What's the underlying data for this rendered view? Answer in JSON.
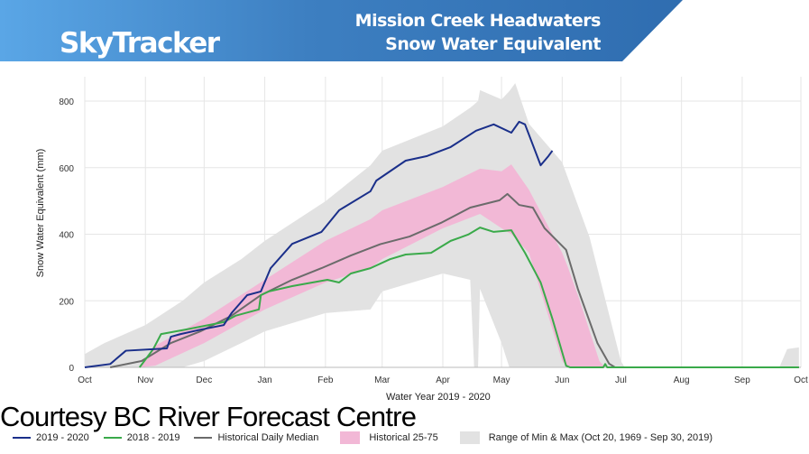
{
  "header": {
    "brand": "SkyTracker",
    "title_line1": "Mission Creek Headwaters",
    "title_line2": "Snow Water Equivalent",
    "banner_color": "#3d7fc1"
  },
  "credit": "Courtesy BC River Forecast Centre",
  "chart_data": {
    "type": "line",
    "xlabel": "Water Year 2019 - 2020",
    "ylabel": "Snow Water Equivalent (mm)",
    "xlim": [
      "2019-10-01",
      "2020-10-01"
    ],
    "ylim": [
      0,
      850
    ],
    "x_ticks": [
      {
        "date": "2019-10-01",
        "label": "Oct"
      },
      {
        "date": "2019-11-01",
        "label": "Nov"
      },
      {
        "date": "2019-12-01",
        "label": "Dec"
      },
      {
        "date": "2020-01-01",
        "label": "Jan"
      },
      {
        "date": "2020-02-01",
        "label": "Feb"
      },
      {
        "date": "2020-03-01",
        "label": "Mar"
      },
      {
        "date": "2020-04-01",
        "label": "Apr"
      },
      {
        "date": "2020-05-01",
        "label": "May"
      },
      {
        "date": "2020-06-01",
        "label": "Jun"
      },
      {
        "date": "2020-07-01",
        "label": "Jul"
      },
      {
        "date": "2020-08-01",
        "label": "Aug"
      },
      {
        "date": "2020-09-01",
        "label": "Sep"
      },
      {
        "date": "2020-10-01",
        "label": "Oct"
      }
    ],
    "y_ticks": [
      0,
      200,
      400,
      600,
      800
    ],
    "grid": true,
    "legend_position": "bottom",
    "bands": [
      {
        "name": "Range of Min & Max (Oct 20, 1969 - Sep 30, 2019)",
        "color": "#e2e2e2",
        "points": [
          [
            "2019-10-01",
            0,
            40
          ],
          [
            "2019-10-11",
            0,
            73
          ],
          [
            "2019-11-01",
            0,
            127
          ],
          [
            "2019-11-20",
            0,
            200
          ],
          [
            "2019-12-01",
            19,
            255
          ],
          [
            "2019-12-20",
            73,
            325
          ],
          [
            "2020-01-01",
            108,
            380
          ],
          [
            "2020-02-01",
            163,
            499
          ],
          [
            "2020-02-24",
            174,
            607
          ],
          [
            "2020-03-01",
            228,
            651
          ],
          [
            "2020-04-01",
            282,
            724
          ],
          [
            "2020-04-15",
            263,
            780
          ],
          [
            "2020-04-17",
            0,
            790
          ],
          [
            "2020-04-19",
            0,
            800
          ],
          [
            "2020-04-20",
            236,
            833
          ],
          [
            "2020-05-01",
            73,
            805
          ],
          [
            "2020-05-05",
            0,
            830
          ],
          [
            "2020-05-08",
            0,
            854
          ],
          [
            "2020-05-15",
            0,
            732
          ],
          [
            "2020-06-01",
            0,
            616
          ],
          [
            "2020-06-15",
            0,
            391
          ],
          [
            "2020-07-01",
            0,
            19
          ],
          [
            "2020-07-03",
            0,
            0
          ],
          [
            "2020-09-20",
            0,
            0
          ],
          [
            "2020-09-24",
            0,
            55
          ],
          [
            "2020-09-30",
            0,
            60
          ]
        ]
      },
      {
        "name": "Historical 25-75",
        "color": "#f2b8d6",
        "points": [
          [
            "2019-10-29",
            0,
            0
          ],
          [
            "2019-11-06",
            5,
            65
          ],
          [
            "2019-12-01",
            73,
            146
          ],
          [
            "2020-01-01",
            174,
            263
          ],
          [
            "2020-02-01",
            255,
            380
          ],
          [
            "2020-02-24",
            298,
            445
          ],
          [
            "2020-03-01",
            325,
            472
          ],
          [
            "2020-04-01",
            418,
            542
          ],
          [
            "2020-04-20",
            461,
            597
          ],
          [
            "2020-05-01",
            418,
            589
          ],
          [
            "2020-05-06",
            400,
            610
          ],
          [
            "2020-05-15",
            344,
            534
          ],
          [
            "2020-06-01",
            19,
            344
          ],
          [
            "2020-06-04",
            0,
            300
          ],
          [
            "2020-06-10",
            0,
            200
          ],
          [
            "2020-06-20",
            0,
            19
          ],
          [
            "2020-06-23",
            0,
            0
          ]
        ]
      }
    ],
    "series": [
      {
        "name": "Range of Min & Max (Oct 20, 1969 - Sep 30, 2019)",
        "legend_only": true
      },
      {
        "name": "Historical Daily Median",
        "color": "#6b6b6b",
        "points": [
          [
            "2019-10-14",
            0
          ],
          [
            "2019-10-30",
            19
          ],
          [
            "2019-11-14",
            73
          ],
          [
            "2019-11-29",
            108
          ],
          [
            "2019-12-15",
            155
          ],
          [
            "2019-12-30",
            217
          ],
          [
            "2020-01-15",
            263
          ],
          [
            "2020-01-30",
            298
          ],
          [
            "2020-02-14",
            336
          ],
          [
            "2020-02-29",
            370
          ],
          [
            "2020-03-15",
            393
          ],
          [
            "2020-03-31",
            434
          ],
          [
            "2020-04-15",
            480
          ],
          [
            "2020-04-30",
            502
          ],
          [
            "2020-05-04",
            521
          ],
          [
            "2020-05-10",
            488
          ],
          [
            "2020-05-17",
            480
          ],
          [
            "2020-05-23",
            418
          ],
          [
            "2020-06-03",
            353
          ],
          [
            "2020-06-09",
            236
          ],
          [
            "2020-06-19",
            73
          ],
          [
            "2020-06-25",
            11
          ],
          [
            "2020-06-28",
            0
          ],
          [
            "2020-09-30",
            0
          ]
        ]
      },
      {
        "name": "2018 - 2019",
        "color": "#3aaa4a",
        "points": [
          [
            "2019-10-29",
            0
          ],
          [
            "2019-11-05",
            55
          ],
          [
            "2019-11-09",
            100
          ],
          [
            "2019-11-21",
            113
          ],
          [
            "2019-12-11",
            136
          ],
          [
            "2019-12-17",
            155
          ],
          [
            "2019-12-29",
            174
          ],
          [
            "2019-12-30",
            217
          ],
          [
            "2020-01-03",
            228
          ],
          [
            "2020-01-15",
            244
          ],
          [
            "2020-02-02",
            263
          ],
          [
            "2020-02-08",
            255
          ],
          [
            "2020-02-14",
            282
          ],
          [
            "2020-02-24",
            298
          ],
          [
            "2020-03-05",
            325
          ],
          [
            "2020-03-13",
            339
          ],
          [
            "2020-03-26",
            344
          ],
          [
            "2020-04-05",
            380
          ],
          [
            "2020-04-14",
            399
          ],
          [
            "2020-04-20",
            420
          ],
          [
            "2020-04-27",
            407
          ],
          [
            "2020-05-06",
            412
          ],
          [
            "2020-05-13",
            344
          ],
          [
            "2020-05-21",
            255
          ],
          [
            "2020-05-27",
            146
          ],
          [
            "2020-06-03",
            5
          ],
          [
            "2020-06-05",
            0
          ],
          [
            "2020-06-22",
            0
          ],
          [
            "2020-06-23",
            10
          ],
          [
            "2020-06-24",
            0
          ],
          [
            "2020-09-30",
            0
          ]
        ]
      },
      {
        "name": "2019 - 2020",
        "color": "#1a2f8a",
        "points": [
          [
            "2019-10-01",
            0
          ],
          [
            "2019-10-14",
            10
          ],
          [
            "2019-10-22",
            50
          ],
          [
            "2019-11-12",
            57
          ],
          [
            "2019-11-14",
            92
          ],
          [
            "2019-11-19",
            100
          ],
          [
            "2019-11-29",
            113
          ],
          [
            "2019-12-11",
            127
          ],
          [
            "2019-12-15",
            163
          ],
          [
            "2019-12-23",
            217
          ],
          [
            "2019-12-30",
            228
          ],
          [
            "2020-01-04",
            298
          ],
          [
            "2020-01-15",
            371
          ],
          [
            "2020-01-30",
            407
          ],
          [
            "2020-02-08",
            472
          ],
          [
            "2020-02-24",
            529
          ],
          [
            "2020-02-27",
            561
          ],
          [
            "2020-03-13",
            621
          ],
          [
            "2020-03-24",
            635
          ],
          [
            "2020-04-05",
            662
          ],
          [
            "2020-04-18",
            711
          ],
          [
            "2020-04-27",
            730
          ],
          [
            "2020-05-06",
            705
          ],
          [
            "2020-05-10",
            738
          ],
          [
            "2020-05-13",
            730
          ],
          [
            "2020-05-21",
            607
          ],
          [
            "2020-05-25",
            635
          ],
          [
            "2020-05-27",
            651
          ]
        ]
      }
    ],
    "legend": [
      {
        "label": "2019 - 2020",
        "kind": "line",
        "color": "#1a2f8a"
      },
      {
        "label": "2018 - 2019",
        "kind": "line",
        "color": "#3aaa4a"
      },
      {
        "label": "Historical Daily Median",
        "kind": "line",
        "color": "#6b6b6b"
      },
      {
        "label": "Historical 25-75",
        "kind": "box",
        "color": "#f2b8d6"
      },
      {
        "label": "Range of Min & Max (Oct 20, 1969 - Sep 30, 2019)",
        "kind": "box",
        "color": "#e2e2e2"
      }
    ]
  }
}
